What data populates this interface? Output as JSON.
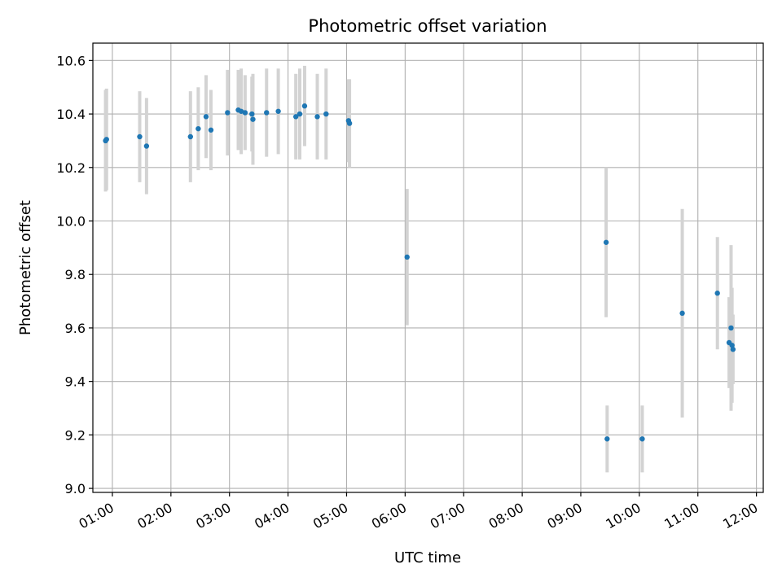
{
  "chart_data": {
    "type": "scatter",
    "title": "Photometric offset variation",
    "xlabel": "UTC time",
    "ylabel": "Photometric offset",
    "xlim": [
      "00:40",
      "12:07"
    ],
    "ylim": [
      8.985,
      10.665
    ],
    "x_ticks": [
      "01:00",
      "02:00",
      "03:00",
      "04:00",
      "05:00",
      "06:00",
      "07:00",
      "08:00",
      "09:00",
      "10:00",
      "11:00",
      "12:00"
    ],
    "y_ticks": [
      "9.0",
      "9.2",
      "9.4",
      "9.6",
      "9.8",
      "10.0",
      "10.2",
      "10.4",
      "10.6"
    ],
    "grid": true,
    "marker_color": "#1f77b4",
    "errorbar_color": "#d3d3d3",
    "series": [
      {
        "points": [
          {
            "x": "00:53",
            "y": 10.3,
            "err": 0.19
          },
          {
            "x": "00:54",
            "y": 10.305,
            "err": 0.19
          },
          {
            "x": "01:28",
            "y": 10.315,
            "err": 0.17
          },
          {
            "x": "01:35",
            "y": 10.28,
            "err": 0.18
          },
          {
            "x": "02:20",
            "y": 10.315,
            "err": 0.17
          },
          {
            "x": "02:28",
            "y": 10.345,
            "err": 0.155
          },
          {
            "x": "02:36",
            "y": 10.39,
            "err": 0.155
          },
          {
            "x": "02:41",
            "y": 10.34,
            "err": 0.15
          },
          {
            "x": "02:58",
            "y": 10.405,
            "err": 0.16
          },
          {
            "x": "03:09",
            "y": 10.415,
            "err": 0.15
          },
          {
            "x": "03:12",
            "y": 10.41,
            "err": 0.16
          },
          {
            "x": "03:16",
            "y": 10.405,
            "err": 0.14
          },
          {
            "x": "03:23",
            "y": 10.4,
            "err": 0.14
          },
          {
            "x": "03:24",
            "y": 10.38,
            "err": 0.17
          },
          {
            "x": "03:38",
            "y": 10.405,
            "err": 0.165
          },
          {
            "x": "03:50",
            "y": 10.41,
            "err": 0.16
          },
          {
            "x": "04:08",
            "y": 10.39,
            "err": 0.16
          },
          {
            "x": "04:12",
            "y": 10.4,
            "err": 0.17
          },
          {
            "x": "04:17",
            "y": 10.43,
            "err": 0.15
          },
          {
            "x": "04:30",
            "y": 10.39,
            "err": 0.16
          },
          {
            "x": "04:39",
            "y": 10.4,
            "err": 0.17
          },
          {
            "x": "05:02",
            "y": 10.375,
            "err": 0.155
          },
          {
            "x": "05:03",
            "y": 10.365,
            "err": 0.165
          },
          {
            "x": "06:02",
            "y": 9.865,
            "err": 0.255
          },
          {
            "x": "09:26",
            "y": 9.92,
            "err": 0.28
          },
          {
            "x": "09:27",
            "y": 9.185,
            "err": 0.125
          },
          {
            "x": "10:03",
            "y": 9.185,
            "err": 0.125
          },
          {
            "x": "10:44",
            "y": 9.655,
            "err": 0.39
          },
          {
            "x": "11:20",
            "y": 9.73,
            "err": 0.21
          },
          {
            "x": "11:32",
            "y": 9.545,
            "err": 0.17
          },
          {
            "x": "11:34",
            "y": 9.6,
            "err": 0.31
          },
          {
            "x": "11:35",
            "y": 9.535,
            "err": 0.215
          },
          {
            "x": "11:36",
            "y": 9.52,
            "err": 0.13
          }
        ]
      }
    ]
  }
}
